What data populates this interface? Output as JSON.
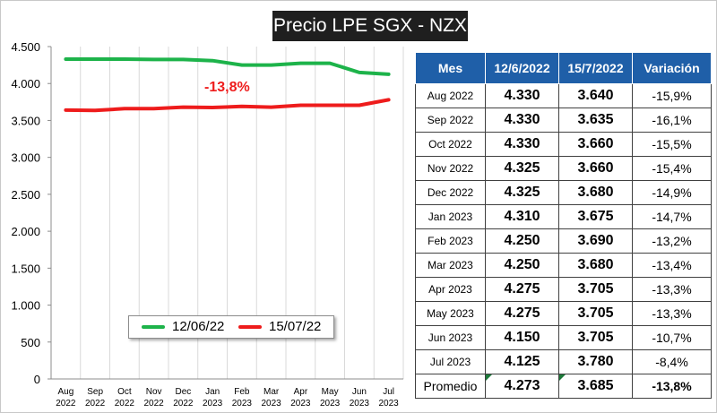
{
  "title": "Precio LPE SGX - NZX",
  "chart_data": {
    "type": "line",
    "x": [
      "Aug 2022",
      "Sep 2022",
      "Oct 2022",
      "Nov 2022",
      "Dec 2022",
      "Jan 2023",
      "Feb 2023",
      "Mar 2023",
      "Apr 2023",
      "May 2023",
      "Jun 2023",
      "Jul 2023"
    ],
    "x_tick_lines": [
      [
        "Aug",
        "2022"
      ],
      [
        "Sep",
        "2022"
      ],
      [
        "Oct",
        "2022"
      ],
      [
        "Nov",
        "2022"
      ],
      [
        "Dec",
        "2022"
      ],
      [
        "Jan",
        "2023"
      ],
      [
        "Feb",
        "2023"
      ],
      [
        "Mar",
        "2023"
      ],
      [
        "Apr",
        "2023"
      ],
      [
        "May",
        "2023"
      ],
      [
        "Jun",
        "2023"
      ],
      [
        "Jul",
        "2023"
      ]
    ],
    "series": [
      {
        "name": "12/06/22",
        "color": "#1db34a",
        "values": [
          4330,
          4330,
          4330,
          4325,
          4325,
          4310,
          4250,
          4250,
          4275,
          4275,
          4150,
          4125
        ]
      },
      {
        "name": "15/07/22",
        "color": "#ee1c1c",
        "values": [
          3640,
          3635,
          3660,
          3660,
          3680,
          3675,
          3690,
          3680,
          3705,
          3705,
          3705,
          3780
        ]
      }
    ],
    "ylim": [
      0,
      4500
    ],
    "yticks": [
      0,
      500,
      1000,
      1500,
      2000,
      2500,
      3000,
      3500,
      4000,
      4500
    ],
    "ytick_labels": [
      "0",
      "500",
      "1.000",
      "1.500",
      "2.000",
      "2.500",
      "3.000",
      "3.500",
      "4.000",
      "4.500"
    ],
    "grid": "vertical",
    "legend": "bottom",
    "annotation": "-13,8%",
    "table": {
      "headers": [
        "Mes",
        "12/6/2022",
        "15/7/2022",
        "Variación"
      ],
      "rows": [
        [
          "Aug 2022",
          "4.330",
          "3.640",
          "-15,9%"
        ],
        [
          "Sep 2022",
          "4.330",
          "3.635",
          "-16,1%"
        ],
        [
          "Oct 2022",
          "4.330",
          "3.660",
          "-15,5%"
        ],
        [
          "Nov 2022",
          "4.325",
          "3.660",
          "-15,4%"
        ],
        [
          "Dec 2022",
          "4.325",
          "3.680",
          "-14,9%"
        ],
        [
          "Jan 2023",
          "4.310",
          "3.675",
          "-14,7%"
        ],
        [
          "Feb 2023",
          "4.250",
          "3.690",
          "-13,2%"
        ],
        [
          "Mar 2023",
          "4.250",
          "3.680",
          "-13,4%"
        ],
        [
          "Apr 2023",
          "4.275",
          "3.705",
          "-13,3%"
        ],
        [
          "May 2023",
          "4.275",
          "3.705",
          "-13,3%"
        ],
        [
          "Jun 2023",
          "4.150",
          "3.705",
          "-10,7%"
        ],
        [
          "Jul 2023",
          "4.125",
          "3.780",
          "-8,4%"
        ]
      ],
      "summary": [
        "Promedio",
        "4.273",
        "3.685",
        "-13,8%"
      ]
    }
  },
  "colors": {
    "header_bg": "#1f5fa8",
    "title_bg": "#1f1f1f",
    "gridline": "#d9d9d9"
  }
}
